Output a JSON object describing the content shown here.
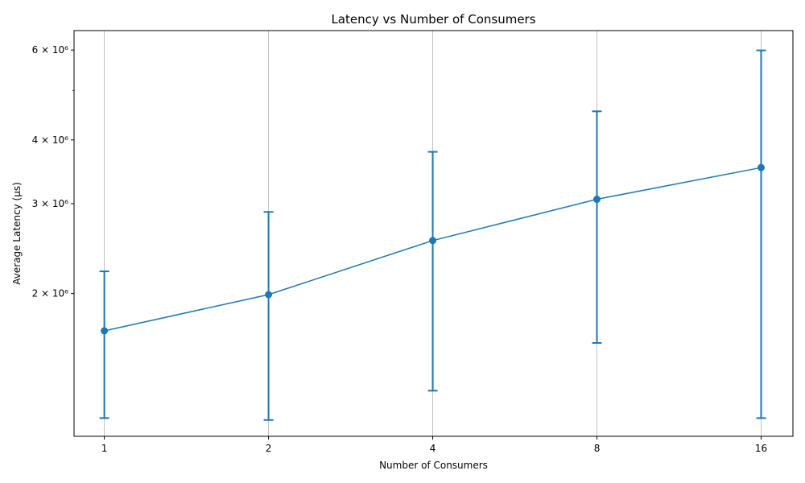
{
  "chart_data": {
    "type": "line",
    "title": "Latency vs Number of Consumers",
    "xlabel": "Number of Consumers",
    "ylabel": "Average Latency (µs)",
    "x_scale": "log2",
    "y_scale": "log",
    "xlim": [
      0.88,
      18.3
    ],
    "ylim": [
      1050000,
      6550000
    ],
    "grid": "vertical",
    "x_ticks": [
      {
        "value": 1,
        "label": "1"
      },
      {
        "value": 2,
        "label": "2"
      },
      {
        "value": 4,
        "label": "4"
      },
      {
        "value": 8,
        "label": "8"
      },
      {
        "value": 16,
        "label": "16"
      }
    ],
    "y_ticks": [
      {
        "value": 2000000,
        "label": "2 × 10⁶"
      },
      {
        "value": 3000000,
        "label": "3 × 10⁶"
      },
      {
        "value": 4000000,
        "label": "4 × 10⁶"
      },
      {
        "value": 6000000,
        "label": "6 × 10⁶"
      }
    ],
    "y_minor_ticks": [
      5000000
    ],
    "series": [
      {
        "color": "#1f77b4",
        "x": [
          1,
          2,
          4,
          8,
          16
        ],
        "y": [
          1690000,
          1990000,
          2540000,
          3060000,
          3530000
        ],
        "err_low": [
          1140000,
          1130000,
          1290000,
          1600000,
          1140000
        ],
        "err_high": [
          2210000,
          2890000,
          3790000,
          4550000,
          5990000
        ]
      }
    ]
  }
}
